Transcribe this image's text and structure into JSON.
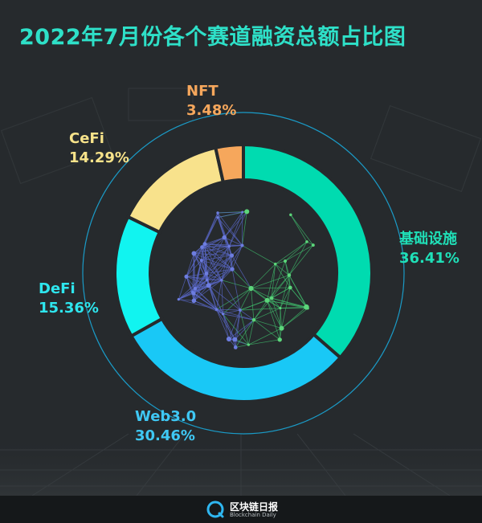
{
  "title": "2022年7月份各个赛道融资总额占比图",
  "chart_data": {
    "type": "donut",
    "title": "2022年7月份各个赛道融资总额占比图",
    "slices": [
      {
        "label": "基础设施",
        "value": 36.41,
        "value_label": "36.41%",
        "color": "#00dbb0",
        "label_color": "#1fe0b8"
      },
      {
        "label": "Web3.0",
        "value": 30.46,
        "value_label": "30.46%",
        "color": "#19c8f6",
        "label_color": "#3fc8f4"
      },
      {
        "label": "DeFi",
        "value": 15.36,
        "value_label": "15.36%",
        "color": "#11f4f0",
        "label_color": "#2ee6ee"
      },
      {
        "label": "CeFi",
        "value": 14.29,
        "value_label": "14.29%",
        "color": "#f8e28c",
        "label_color": "#f7e38a"
      },
      {
        "label": "NFT",
        "value": 3.48,
        "value_label": "3.48%",
        "color": "#f6a75c",
        "label_color": "#f6a75c"
      }
    ],
    "start_angle_deg": 0,
    "direction": "clockwise"
  },
  "footer": {
    "brand": "区块链日报",
    "brand_en": "Blockchain Daily"
  },
  "colors": {
    "background": "#262a2d",
    "title": "#2ee0c8",
    "footer_bg": "#15181a",
    "orbit": "#1aa7d8"
  }
}
